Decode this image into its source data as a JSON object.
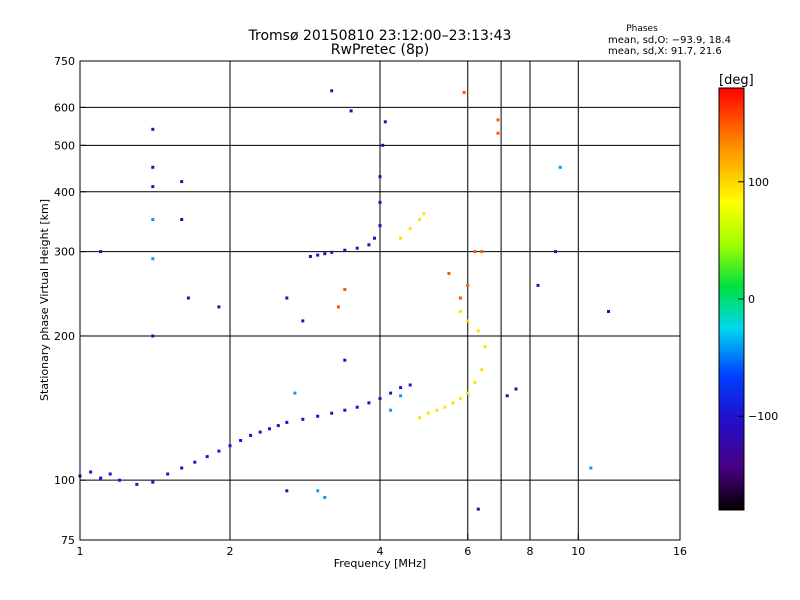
{
  "chart_data": {
    "type": "scatter",
    "title": "Tromsø 20150810 23:12:00–23:13:43",
    "subtitle": "RwPretec (8p)",
    "xlabel": "Frequency [MHz]",
    "ylabel": "Stationary phase Virtual Height [km]",
    "x_scale": "log",
    "y_scale": "log",
    "xlim": [
      1,
      16
    ],
    "ylim": [
      75,
      750
    ],
    "x_ticks": [
      1,
      2,
      4,
      6,
      8,
      10,
      16
    ],
    "x_ticks_labels": [
      "1",
      "2",
      "4",
      "6",
      "8",
      "10",
      "16"
    ],
    "x_gridlines": [
      2,
      4,
      6,
      7,
      8,
      10
    ],
    "y_ticks": [
      75,
      100,
      200,
      300,
      400,
      500,
      600,
      750
    ],
    "y_ticks_labels": [
      "75",
      "100",
      "200",
      "300",
      "400",
      "500",
      "600",
      "750"
    ],
    "y_gridlines": [
      100,
      200,
      300,
      400,
      500,
      600
    ],
    "grid": true,
    "legend": {
      "title": "Phases",
      "lines": [
        "mean, sd,O: −93.9, 18.4",
        "mean, sd,X:  91.7, 21.6"
      ],
      "placement": "top-right"
    },
    "colorbar": {
      "label": "[deg]",
      "range": [
        -180,
        180
      ],
      "ticks": [
        100,
        0,
        -100
      ],
      "tick_labels": [
        "100",
        "0",
        "−100"
      ],
      "colormap": "rainbow (black-violet-blue-cyan-green-yellow-orange-red)"
    },
    "series": [
      {
        "trace": "lower layer O-mode trace, blue (~ -100 deg)",
        "phase_deg": -100,
        "points": [
          [
            1.0,
            102
          ],
          [
            1.05,
            104
          ],
          [
            1.1,
            101
          ],
          [
            1.15,
            103
          ],
          [
            1.2,
            100
          ],
          [
            1.3,
            98
          ],
          [
            1.4,
            99
          ],
          [
            1.5,
            103
          ],
          [
            1.6,
            106
          ],
          [
            1.7,
            109
          ],
          [
            1.8,
            112
          ],
          [
            1.9,
            115
          ],
          [
            2.0,
            118
          ],
          [
            2.1,
            121
          ],
          [
            2.2,
            124
          ],
          [
            2.3,
            126
          ],
          [
            2.4,
            128
          ],
          [
            2.5,
            130
          ],
          [
            2.6,
            132
          ],
          [
            2.8,
            134
          ],
          [
            3.0,
            136
          ],
          [
            3.2,
            138
          ],
          [
            3.4,
            140
          ],
          [
            3.6,
            142
          ],
          [
            3.8,
            145
          ],
          [
            4.0,
            148
          ],
          [
            4.2,
            152
          ],
          [
            4.4,
            156
          ],
          [
            4.6,
            158
          ]
        ]
      },
      {
        "trace": "upper layer trace, blue-violet",
        "phase_deg": -110,
        "points": [
          [
            2.9,
            293
          ],
          [
            3.0,
            295
          ],
          [
            3.1,
            297
          ],
          [
            3.2,
            299
          ],
          [
            3.4,
            302
          ],
          [
            3.6,
            305
          ],
          [
            3.8,
            310
          ],
          [
            3.9,
            320
          ],
          [
            4.0,
            340
          ],
          [
            4.0,
            380
          ],
          [
            4.0,
            430
          ],
          [
            4.05,
            500
          ],
          [
            4.1,
            560
          ]
        ]
      },
      {
        "trace": "yellow X-mode cluster",
        "phase_deg": 95,
        "points": [
          [
            4.8,
            135
          ],
          [
            5.0,
            138
          ],
          [
            5.2,
            140
          ],
          [
            5.4,
            142
          ],
          [
            5.6,
            145
          ],
          [
            5.8,
            148
          ],
          [
            6.0,
            152
          ],
          [
            6.2,
            160
          ],
          [
            6.4,
            170
          ],
          [
            6.5,
            190
          ],
          [
            6.3,
            205
          ],
          [
            6.0,
            215
          ],
          [
            5.8,
            225
          ],
          [
            4.4,
            320
          ],
          [
            4.6,
            335
          ],
          [
            4.8,
            350
          ],
          [
            4.9,
            360
          ]
        ]
      },
      {
        "trace": "cyan/green points",
        "phase_deg": -40,
        "points": [
          [
            3.1,
            92
          ],
          [
            3.0,
            95
          ],
          [
            4.2,
            140
          ],
          [
            4.4,
            150
          ],
          [
            2.7,
            152
          ],
          [
            1.4,
            350
          ],
          [
            1.4,
            290
          ],
          [
            9.2,
            450
          ],
          [
            10.6,
            106
          ]
        ]
      },
      {
        "trace": "orange/red scattered points",
        "phase_deg": 150,
        "points": [
          [
            5.9,
            645
          ],
          [
            6.9,
            565
          ],
          [
            6.9,
            530
          ],
          [
            6.4,
            300
          ],
          [
            5.5,
            270
          ],
          [
            6.0,
            255
          ],
          [
            5.8,
            240
          ],
          [
            3.4,
            250
          ],
          [
            3.3,
            230
          ],
          [
            6.2,
            300
          ]
        ]
      },
      {
        "trace": "scattered outliers, dark blue",
        "phase_deg": -120,
        "points": [
          [
            3.2,
            650
          ],
          [
            3.5,
            590
          ],
          [
            1.4,
            540
          ],
          [
            1.4,
            450
          ],
          [
            1.4,
            410
          ],
          [
            1.6,
            420
          ],
          [
            1.6,
            350
          ],
          [
            1.65,
            240
          ],
          [
            1.4,
            200
          ],
          [
            1.9,
            230
          ],
          [
            2.6,
            240
          ],
          [
            2.8,
            215
          ],
          [
            9.0,
            300
          ],
          [
            8.3,
            255
          ],
          [
            11.5,
            225
          ],
          [
            7.2,
            150
          ],
          [
            7.5,
            155
          ],
          [
            6.3,
            87
          ],
          [
            2.6,
            95
          ],
          [
            3.4,
            178
          ],
          [
            1.1,
            300
          ]
        ]
      }
    ]
  }
}
